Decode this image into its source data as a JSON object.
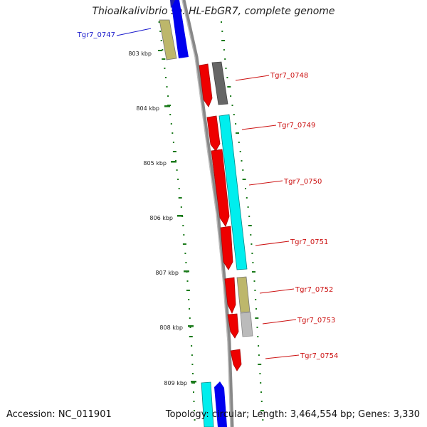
{
  "title": "Thioalkalivibrio sp. HL-EbGR7, complete genome",
  "accession": "Accession: NC_011901",
  "topology": "Topology: circular; Length: 3,464,554 bp; Genes: 3,330",
  "kbp_ticks": [
    "803 kbp",
    "804 kbp",
    "805 kbp",
    "806 kbp",
    "807 kbp",
    "808 kbp",
    "809 kbp"
  ],
  "colors": {
    "selected_label": "#1a1acc",
    "gene_label": "#cc1111",
    "red": "#ee0000",
    "blue": "#0000ee",
    "cyan": "#00eeee",
    "khaki": "#bdb76b",
    "dark_gray": "#666666",
    "light_gray": "#bbbbbb",
    "gc_skew": "#1a7a1a"
  },
  "genes": [
    {
      "id": "Tgr7_0747",
      "strand": "reverse",
      "color": "blue"
    },
    {
      "id": "Tgr7_0748",
      "strand": "forward",
      "color": "red"
    },
    {
      "id": "Tgr7_0749",
      "strand": "forward",
      "color": "red"
    },
    {
      "id": "Tgr7_0750",
      "strand": "forward",
      "color": "red"
    },
    {
      "id": "Tgr7_0751",
      "strand": "forward",
      "color": "red"
    },
    {
      "id": "Tgr7_0752",
      "strand": "forward",
      "color": "red"
    },
    {
      "id": "Tgr7_0753",
      "strand": "forward",
      "color": "red"
    },
    {
      "id": "Tgr7_0754",
      "strand": "forward",
      "color": "red"
    }
  ]
}
